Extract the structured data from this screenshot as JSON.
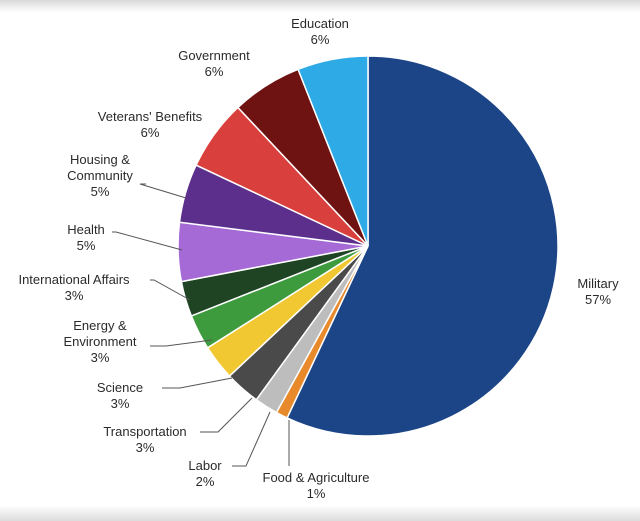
{
  "chart_data": {
    "type": "pie",
    "title": "",
    "slices": [
      {
        "label": "Military",
        "value": 57,
        "value_label": "57%",
        "color": "#1c4587"
      },
      {
        "label": "Food & Agriculture",
        "value": 1,
        "value_label": "1%",
        "color": "#e8892c"
      },
      {
        "label": "Labor",
        "value": 2,
        "value_label": "2%",
        "color": "#bdbdbd"
      },
      {
        "label": "Transportation",
        "value": 3,
        "value_label": "3%",
        "color": "#4a4a4a"
      },
      {
        "label": "Science",
        "value": 3,
        "value_label": "3%",
        "color": "#f2c832"
      },
      {
        "label": "Energy & Environment",
        "value": 3,
        "value_label": "3%",
        "color": "#3d9a3d"
      },
      {
        "label": "International Affairs",
        "value": 3,
        "value_label": "3%",
        "color": "#1e4424"
      },
      {
        "label": "Health",
        "value": 5,
        "value_label": "5%",
        "color": "#a56ad6"
      },
      {
        "label": "Housing & Community",
        "value": 5,
        "value_label": "5%",
        "color": "#5c2f8c"
      },
      {
        "label": "Veterans' Benefits",
        "value": 6,
        "value_label": "6%",
        "color": "#d9403d"
      },
      {
        "label": "Government",
        "value": 6,
        "value_label": "6%",
        "color": "#6e1212"
      },
      {
        "label": "Education",
        "value": 6,
        "value_label": "6%",
        "color": "#2eaae6"
      }
    ]
  }
}
